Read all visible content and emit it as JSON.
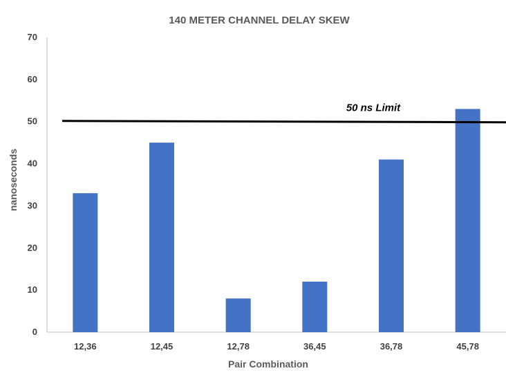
{
  "chart_data": {
    "type": "bar",
    "title": "140 METER CHANNEL DELAY SKEW",
    "xlabel": "Pair Combination",
    "ylabel": "nanoseconds",
    "categories": [
      "12,36",
      "12,45",
      "12,78",
      "36,45",
      "36,78",
      "45,78"
    ],
    "values": [
      33,
      45,
      8,
      12,
      41,
      53
    ],
    "ylim": [
      0,
      70
    ],
    "yticks": [
      0,
      10,
      20,
      30,
      40,
      50,
      60,
      70
    ],
    "grid": false,
    "legend": "none",
    "reference_line": {
      "value": 50,
      "label": "50 ns Limit"
    },
    "colors": {
      "bar": "#4472C4",
      "reference_line": "#000000",
      "axis": "#bfbfbf"
    }
  }
}
